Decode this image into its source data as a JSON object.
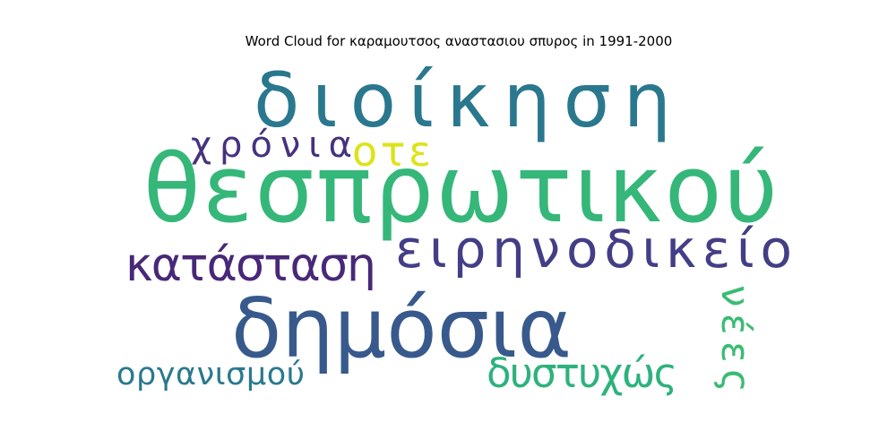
{
  "chart_data": {
    "type": "wordcloud",
    "title": "Word Cloud for καραμουτσος αναστασιου σπυρος in 1991-2000",
    "words": [
      {
        "text": "διοίκηση",
        "color": "#2a788e",
        "orientation": "horizontal"
      },
      {
        "text": "θεσπρωτικού",
        "color": "#35b779",
        "orientation": "horizontal"
      },
      {
        "text": "δημόσια",
        "color": "#38598c",
        "orientation": "horizontal"
      },
      {
        "text": "ειρηνοδικείο",
        "color": "#433e85",
        "orientation": "horizontal"
      },
      {
        "text": "κατάσταση",
        "color": "#482878",
        "orientation": "horizontal"
      },
      {
        "text": "χρόνια",
        "color": "#46327e",
        "orientation": "horizontal"
      },
      {
        "text": "οτε",
        "color": "#dde318",
        "orientation": "horizontal"
      },
      {
        "text": "δυστυχώς",
        "color": "#2db27d",
        "orientation": "horizontal"
      },
      {
        "text": "οργανισμού",
        "color": "#29798e",
        "orientation": "horizontal"
      },
      {
        "text": "νέες",
        "color": "#3bbb75",
        "orientation": "vertical"
      }
    ]
  }
}
